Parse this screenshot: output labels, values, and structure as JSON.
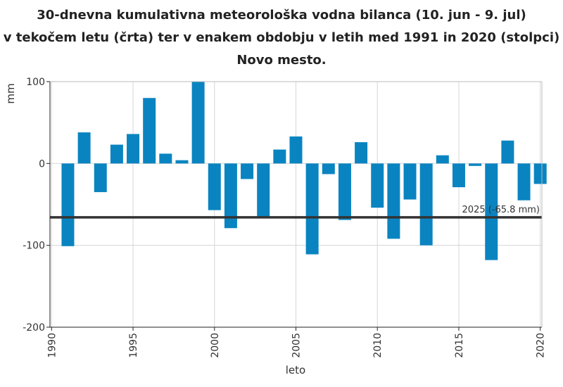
{
  "title": {
    "line1": "30-dnevna kumulativna meteorološka vodna bilanca (10. jun - 9. jul)",
    "line2": "v tekočem letu (črta) ter v enakem obdobju v letih med 1991 in 2020 (stolpci)",
    "line3": "Novo mesto."
  },
  "chart_data": {
    "type": "bar",
    "xlabel": "leto",
    "ylabel": "mm",
    "xlim": [
      1989.9,
      2020.1
    ],
    "ylim": [
      -200,
      100
    ],
    "xticks": [
      1990,
      1995,
      2000,
      2005,
      2010,
      2015,
      2020
    ],
    "yticks": [
      100,
      0,
      -100,
      -200
    ],
    "ytick_labels": [
      "100",
      "0",
      "-100",
      "-200"
    ],
    "grid": true,
    "bar_color": "#0a84c1",
    "categories": [
      1991,
      1992,
      1993,
      1994,
      1995,
      1996,
      1997,
      1998,
      1999,
      2000,
      2001,
      2002,
      2003,
      2004,
      2005,
      2006,
      2007,
      2008,
      2009,
      2010,
      2011,
      2012,
      2013,
      2014,
      2015,
      2016,
      2017,
      2018,
      2019,
      2020
    ],
    "values": [
      -101,
      38,
      -35,
      23,
      36,
      80,
      12,
      4,
      100,
      -57,
      -79,
      -19,
      -65,
      17,
      33,
      -111,
      -13,
      -69,
      26,
      -54,
      -92,
      -44,
      -100,
      10,
      -29,
      -3,
      -118,
      28,
      -45,
      -25
    ],
    "reference_line": {
      "value": -65.8,
      "label": "2025 (-65.8 mm)",
      "color": "#333333"
    }
  }
}
